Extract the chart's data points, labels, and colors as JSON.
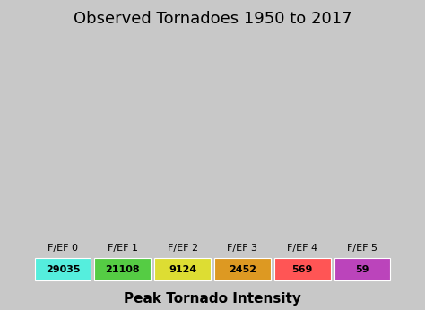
{
  "title": "Observed Tornadoes 1950 to 2017",
  "xlabel": "Peak Tornado Intensity",
  "categories": [
    "F/EF 0",
    "F/EF 1",
    "F/EF 2",
    "F/EF 3",
    "F/EF 4",
    "F/EF 5"
  ],
  "counts": [
    "29035",
    "21108",
    "9124",
    "2452",
    "569",
    "59"
  ],
  "colors": [
    "#55eedd",
    "#55cc44",
    "#dddd33",
    "#dd9922",
    "#ff5555",
    "#bb44bb"
  ],
  "background_color": "#c8c8c8",
  "map_bg": "#a0a0a0",
  "title_fontsize": 13,
  "label_fontsize": 8,
  "count_fontsize": 8,
  "xlabel_fontsize": 11,
  "map_extent": [
    -125,
    -65,
    24,
    50
  ],
  "seed": 42
}
